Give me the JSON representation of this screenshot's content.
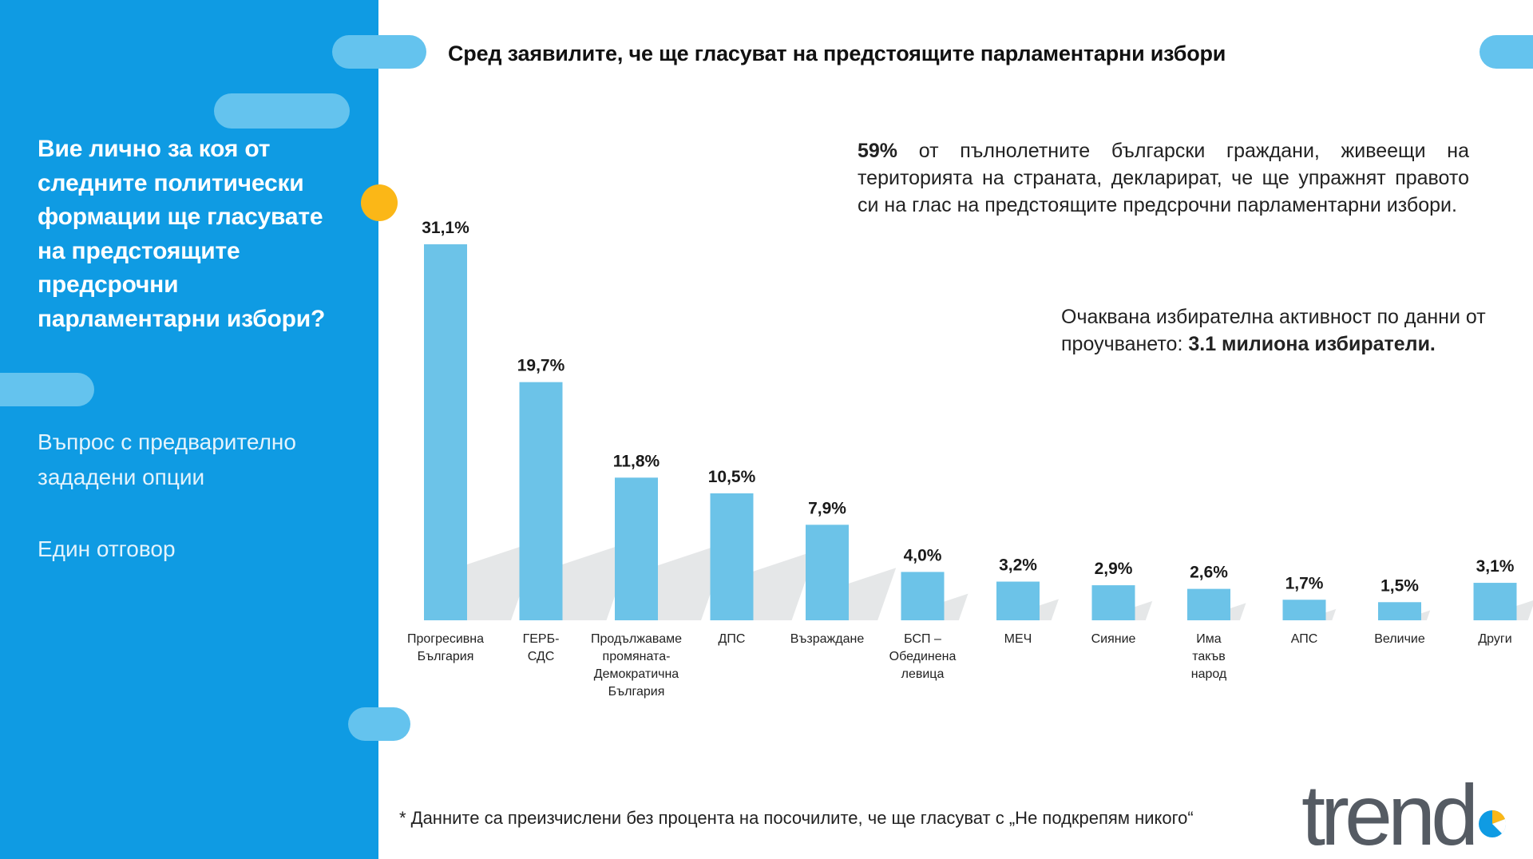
{
  "sidebar": {
    "question": "Вие лично за коя от следните политически формации ще гласувате на предстоящите предсрочни парламентарни избори?",
    "note_options": "Въпрос с предварително зададени опции",
    "note_single": "Един отговор"
  },
  "header": {
    "title": "Сред заявилите, че ще гласуват на предстоящите парламентарни избори"
  },
  "info": {
    "turnout_pct": "59%",
    "turnout_text": " от пълнолетните български граждани, живеещи на територията на страната, декларират, че ще упражнят правото си на глас на предстоящите предсрочни парламентарни избори.",
    "expected_text": "Очаквана избирателна активност по данни от проучването: ",
    "expected_value": "3.1 милиона избиратели."
  },
  "footnote": "* Данните са преизчислени без процента на посочилите, че ще гласуват с „Не подкрепям никого“",
  "logo_text": "trend",
  "colors": {
    "sidebar": "#0f9be3",
    "bar": "#6cc3e8",
    "accent_dot": "#fbb717",
    "logo_gray": "#555b63"
  },
  "chart_data": {
    "type": "bar",
    "categories": [
      [
        "Прогресивна",
        "България"
      ],
      [
        "ГЕРБ-",
        "СДС"
      ],
      [
        "Продължаваме",
        "промяната-",
        "Демократична",
        "България"
      ],
      [
        "ДПС"
      ],
      [
        "Възраждане"
      ],
      [
        "БСП –",
        "Обединена",
        "левица"
      ],
      [
        "МЕЧ"
      ],
      [
        "Сияние"
      ],
      [
        "Има",
        "такъв",
        "народ"
      ],
      [
        "АПС"
      ],
      [
        "Величие"
      ],
      [
        "Други"
      ]
    ],
    "values": [
      31.1,
      19.7,
      11.8,
      10.5,
      7.9,
      4.0,
      3.2,
      2.9,
      2.6,
      1.7,
      1.5,
      3.1
    ],
    "labels": [
      "31,1%",
      "19,7%",
      "11,8%",
      "10,5%",
      "7,9%",
      "4,0%",
      "3,2%",
      "2,9%",
      "2,6%",
      "1,7%",
      "1,5%",
      "3,1%"
    ],
    "ylim": [
      0,
      31.1
    ],
    "grid": false,
    "legend": "none"
  }
}
